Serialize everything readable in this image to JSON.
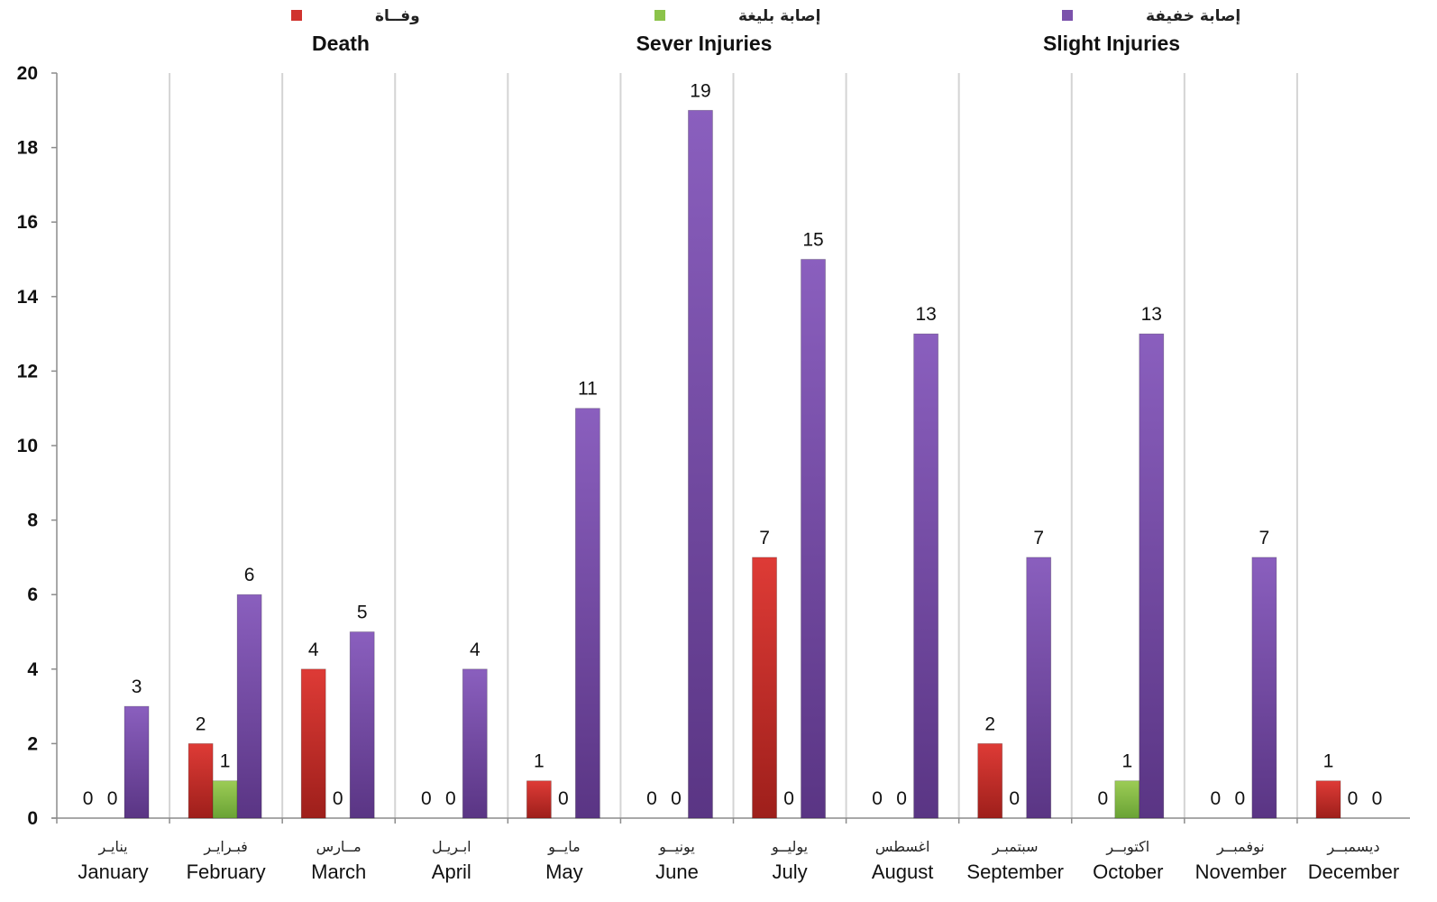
{
  "chart_data": {
    "type": "bar",
    "categories": [
      "January",
      "February",
      "March",
      "April",
      "May",
      "June",
      "July",
      "August",
      "September",
      "October",
      "November",
      "December"
    ],
    "categories_ar": [
      "ينايـر",
      "فبـرايـر",
      "مــارس",
      "ابـريـل",
      "مايــو",
      "يونيــو",
      "يوليــو",
      "اغسطس",
      "سبتمبـر",
      "اكتوبــر",
      "نوفمبــر",
      "ديسمبــر"
    ],
    "series": [
      {
        "key": "death",
        "name": "Death",
        "name_ar": "وفــاة",
        "color": "#d0332e",
        "values": [
          0,
          2,
          4,
          0,
          1,
          0,
          7,
          0,
          2,
          0,
          0,
          1
        ]
      },
      {
        "key": "severe",
        "name": "Sever Injuries",
        "name_ar": "إصابة بليغة",
        "color": "#8bc34a",
        "values": [
          0,
          1,
          0,
          0,
          0,
          0,
          0,
          0,
          0,
          1,
          0,
          0
        ]
      },
      {
        "key": "slight",
        "name": "Slight Injuries",
        "name_ar": "إصابة خفيفة",
        "color": "#7b52ab",
        "values": [
          3,
          6,
          5,
          4,
          11,
          19,
          15,
          13,
          7,
          13,
          7,
          0
        ]
      }
    ],
    "yticks": [
      "0",
      "2",
      "4",
      "6",
      "8",
      "10",
      "12",
      "14",
      "16",
      "18",
      "20"
    ],
    "ylim": [
      0,
      20
    ],
    "grid": "vertical separators between months",
    "legend_position": "top",
    "title": "",
    "xlabel": "",
    "ylabel": ""
  }
}
